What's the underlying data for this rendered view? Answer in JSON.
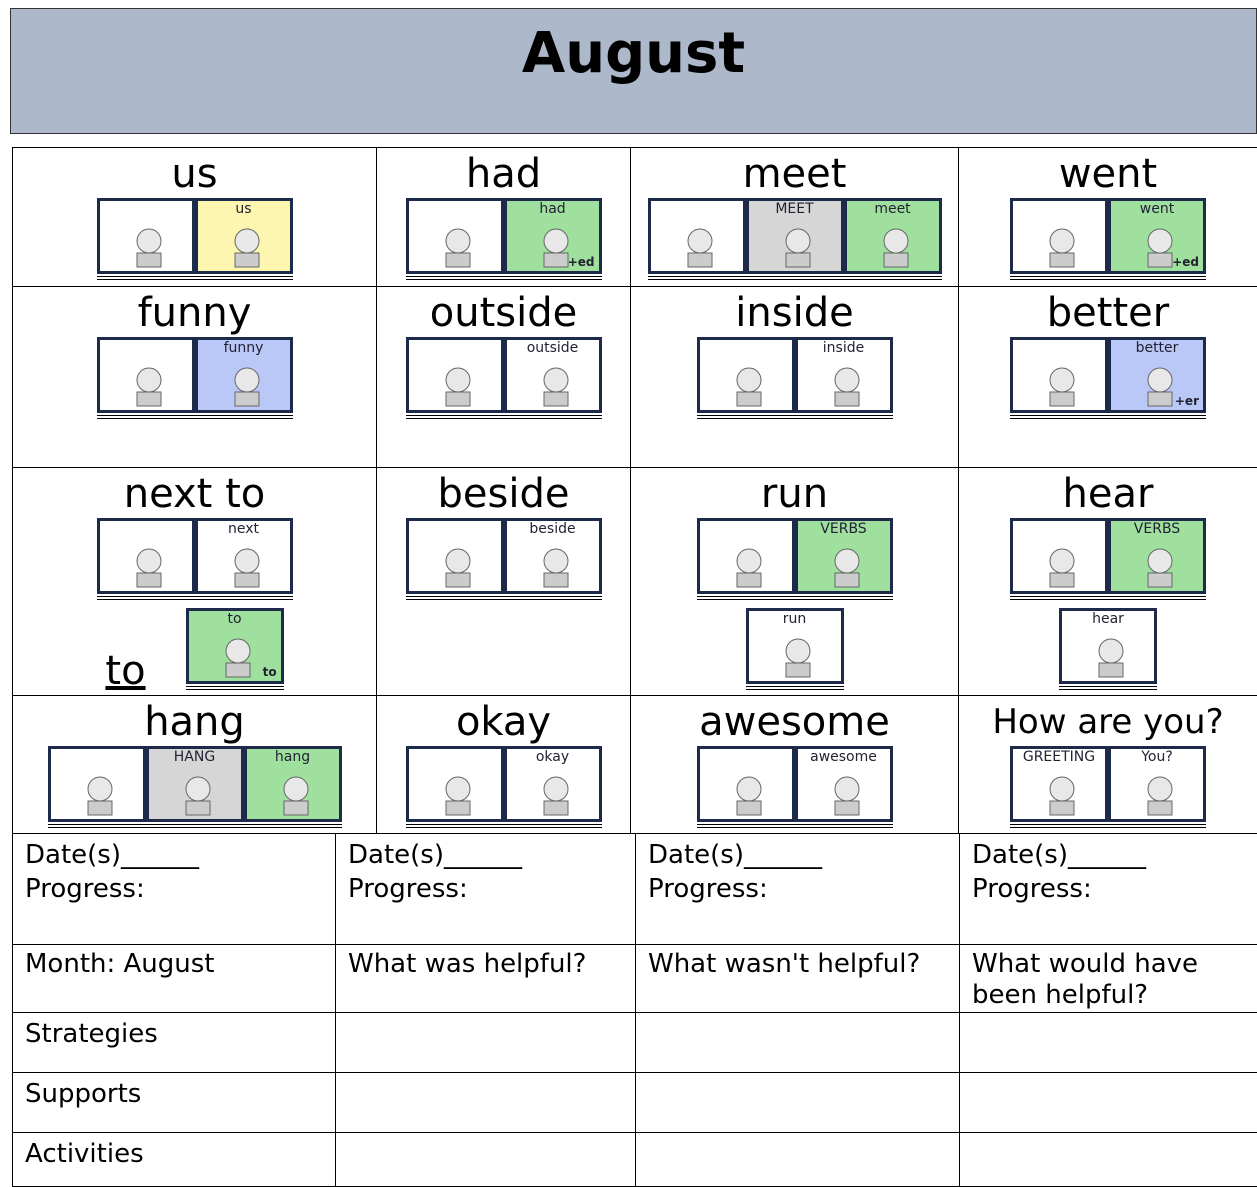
{
  "header": {
    "title": "August"
  },
  "grid": {
    "rows": [
      [
        {
          "word": "us",
          "tiles": [
            {
              "color": "#ffffff"
            },
            {
              "label": "us",
              "color": "#fdf6b0"
            }
          ]
        },
        {
          "word": "had",
          "tiles": [
            {
              "color": "#ffffff"
            },
            {
              "label": "had",
              "sub": "+ed",
              "color": "#9fe09f"
            }
          ]
        },
        {
          "word": "meet",
          "tiles": [
            {
              "color": "#ffffff"
            },
            {
              "label": "MEET",
              "color": "#d6d6d6"
            },
            {
              "label": "meet",
              "color": "#9fe09f"
            }
          ]
        },
        {
          "word": "went",
          "tiles": [
            {
              "color": "#ffffff"
            },
            {
              "label": "went",
              "sub": "+ed",
              "color": "#9fe09f"
            }
          ]
        }
      ],
      [
        {
          "word": "funny",
          "tiles": [
            {
              "color": "#ffffff"
            },
            {
              "label": "funny",
              "color": "#b9c8f7"
            }
          ]
        },
        {
          "word": "outside",
          "tiles": [
            {
              "color": "#ffffff"
            },
            {
              "label": "outside",
              "color": "#ffffff"
            }
          ]
        },
        {
          "word": "inside",
          "tiles": [
            {
              "color": "#ffffff"
            },
            {
              "label": "inside",
              "color": "#ffffff"
            }
          ]
        },
        {
          "word": "better",
          "tiles": [
            {
              "color": "#ffffff"
            },
            {
              "label": "better",
              "sub": "+er",
              "color": "#b9c8f7"
            }
          ]
        }
      ],
      [
        {
          "word": "next to",
          "tiles": [
            {
              "color": "#ffffff"
            },
            {
              "label": "next",
              "color": "#ffffff"
            }
          ],
          "extra": {
            "word": "to",
            "tiles": [
              {
                "label": "to",
                "sub": "to",
                "color": "#9fe09f"
              }
            ]
          }
        },
        {
          "word": "beside",
          "tiles": [
            {
              "color": "#ffffff"
            },
            {
              "label": "beside",
              "color": "#ffffff"
            }
          ]
        },
        {
          "word": "run",
          "tiles": [
            {
              "color": "#ffffff"
            },
            {
              "label": "VERBS",
              "color": "#9fe09f"
            }
          ],
          "extra": {
            "tiles": [
              {
                "label": "run",
                "color": "#ffffff"
              }
            ]
          }
        },
        {
          "word": "hear",
          "tiles": [
            {
              "color": "#ffffff"
            },
            {
              "label": "VERBS",
              "color": "#9fe09f"
            }
          ],
          "extra": {
            "tiles": [
              {
                "label": "hear",
                "color": "#ffffff"
              }
            ]
          }
        }
      ],
      [
        {
          "word": "hang",
          "tiles": [
            {
              "color": "#ffffff"
            },
            {
              "label": "HANG",
              "color": "#d6d6d6"
            },
            {
              "label": "hang",
              "color": "#9fe09f"
            }
          ]
        },
        {
          "word": "okay",
          "tiles": [
            {
              "color": "#ffffff"
            },
            {
              "label": "okay",
              "color": "#ffffff"
            }
          ]
        },
        {
          "word": "awesome",
          "tiles": [
            {
              "color": "#ffffff"
            },
            {
              "label": "awesome",
              "color": "#ffffff"
            }
          ]
        },
        {
          "word": "How are you?",
          "tiles": [
            {
              "label": "GREETING",
              "color": "#ffffff"
            },
            {
              "label": "You?",
              "color": "#ffffff"
            }
          ]
        }
      ]
    ]
  },
  "table": {
    "progress": [
      {
        "date": "Date(s)______",
        "progress": "Progress:"
      },
      {
        "date": "Date(s)______",
        "progress": "Progress:"
      },
      {
        "date": "Date(s)______",
        "progress": "Progress:"
      },
      {
        "date": "Date(s)______",
        "progress": "Progress:"
      }
    ],
    "questions": [
      "Month: August",
      "What was helpful?",
      "What wasn't helpful?",
      "What would have been helpful?"
    ],
    "rows": [
      "Strategies",
      "Supports",
      "Activities"
    ]
  }
}
